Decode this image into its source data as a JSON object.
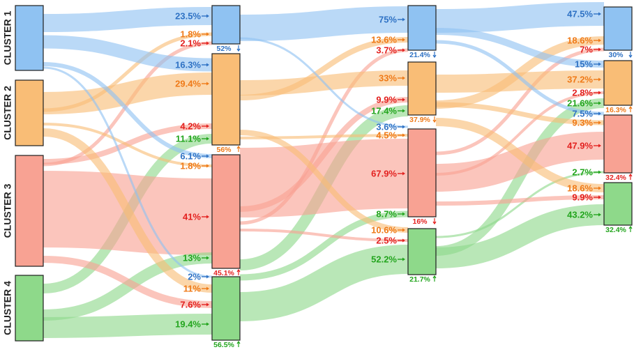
{
  "colors": {
    "c1": "#8fc2f2",
    "c2": "#f9bd76",
    "c3": "#f8a293",
    "c4": "#8ed98a",
    "t1": "#2f72c4",
    "t2": "#ef7a18",
    "t3": "#e32220",
    "t4": "#23a51e"
  },
  "clusters": {
    "c1": {
      "label": "CLUSTER 1"
    },
    "c2": {
      "label": "CLUSTER 2"
    },
    "c3": {
      "label": "CLUSTER 3"
    },
    "c4": {
      "label": "CLUSTER 4"
    }
  },
  "stage_shares": {
    "s1": {
      "c1": "52%",
      "c2": "56%",
      "c3": "45.1%",
      "c4": "56.5%"
    },
    "s2": {
      "c1": "21.4%",
      "c2": "37.9%",
      "c3": "16%",
      "c4": "21.7%"
    },
    "s3": {
      "c1": "30%",
      "c2": "16.3%",
      "c3": "32.4%",
      "c4": "32.4%"
    }
  },
  "transitions": [
    {
      "stage": 1,
      "to": "c1",
      "from": "c1",
      "value": "23.5%"
    },
    {
      "stage": 1,
      "to": "c1",
      "from": "c2",
      "value": "1.8%"
    },
    {
      "stage": 1,
      "to": "c1",
      "from": "c3",
      "value": "2.1%"
    },
    {
      "stage": 1,
      "to": "c2",
      "from": "c1",
      "value": "16.3%"
    },
    {
      "stage": 1,
      "to": "c2",
      "from": "c2",
      "value": "29.4%"
    },
    {
      "stage": 1,
      "to": "c2",
      "from": "c3",
      "value": "4.2%"
    },
    {
      "stage": 1,
      "to": "c2",
      "from": "c4",
      "value": "11.1%"
    },
    {
      "stage": 1,
      "to": "c3",
      "from": "c1",
      "value": "6.1%"
    },
    {
      "stage": 1,
      "to": "c3",
      "from": "c2",
      "value": "1.8%"
    },
    {
      "stage": 1,
      "to": "c3",
      "from": "c3",
      "value": "41%"
    },
    {
      "stage": 1,
      "to": "c3",
      "from": "c4",
      "value": "13%"
    },
    {
      "stage": 1,
      "to": "c4",
      "from": "c1",
      "value": "2%"
    },
    {
      "stage": 1,
      "to": "c4",
      "from": "c2",
      "value": "11%"
    },
    {
      "stage": 1,
      "to": "c4",
      "from": "c3",
      "value": "7.6%"
    },
    {
      "stage": 1,
      "to": "c4",
      "from": "c4",
      "value": "19.4%"
    },
    {
      "stage": 2,
      "to": "c1",
      "from": "c1",
      "value": "75%"
    },
    {
      "stage": 2,
      "to": "c1",
      "from": "c2",
      "value": "13.6%"
    },
    {
      "stage": 2,
      "to": "c1",
      "from": "c3",
      "value": "3.7%"
    },
    {
      "stage": 2,
      "to": "c2",
      "from": "c2",
      "value": "33%"
    },
    {
      "stage": 2,
      "to": "c2",
      "from": "c3",
      "value": "9.9%"
    },
    {
      "stage": 2,
      "to": "c2",
      "from": "c4",
      "value": "17.4%"
    },
    {
      "stage": 2,
      "to": "c3",
      "from": "c1",
      "value": "3.6%"
    },
    {
      "stage": 2,
      "to": "c3",
      "from": "c2",
      "value": "4.5%"
    },
    {
      "stage": 2,
      "to": "c3",
      "from": "c3",
      "value": "67.9%"
    },
    {
      "stage": 2,
      "to": "c3",
      "from": "c4",
      "value": "8.7%"
    },
    {
      "stage": 2,
      "to": "c4",
      "from": "c2",
      "value": "10.6%"
    },
    {
      "stage": 2,
      "to": "c4",
      "from": "c3",
      "value": "2.5%"
    },
    {
      "stage": 2,
      "to": "c4",
      "from": "c4",
      "value": "52.2%"
    },
    {
      "stage": 3,
      "to": "c1",
      "from": "c1",
      "value": "47.5%"
    },
    {
      "stage": 3,
      "to": "c1",
      "from": "c2",
      "value": "18.6%"
    },
    {
      "stage": 3,
      "to": "c1",
      "from": "c3",
      "value": "7%"
    },
    {
      "stage": 3,
      "to": "c2",
      "from": "c1",
      "value": "15%"
    },
    {
      "stage": 3,
      "to": "c2",
      "from": "c2",
      "value": "37.2%"
    },
    {
      "stage": 3,
      "to": "c2",
      "from": "c3",
      "value": "2.8%"
    },
    {
      "stage": 3,
      "to": "c2",
      "from": "c4",
      "value": "21.6%"
    },
    {
      "stage": 3,
      "to": "c3",
      "from": "c1",
      "value": "7.5%"
    },
    {
      "stage": 3,
      "to": "c3",
      "from": "c2",
      "value": "9.3%"
    },
    {
      "stage": 3,
      "to": "c3",
      "from": "c3",
      "value": "47.9%"
    },
    {
      "stage": 3,
      "to": "c3",
      "from": "c4",
      "value": "2.7%"
    },
    {
      "stage": 3,
      "to": "c4",
      "from": "c2",
      "value": "18.6%"
    },
    {
      "stage": 3,
      "to": "c4",
      "from": "c3",
      "value": "9.9%"
    },
    {
      "stage": 3,
      "to": "c4",
      "from": "c4",
      "value": "43.2%"
    }
  ]
}
